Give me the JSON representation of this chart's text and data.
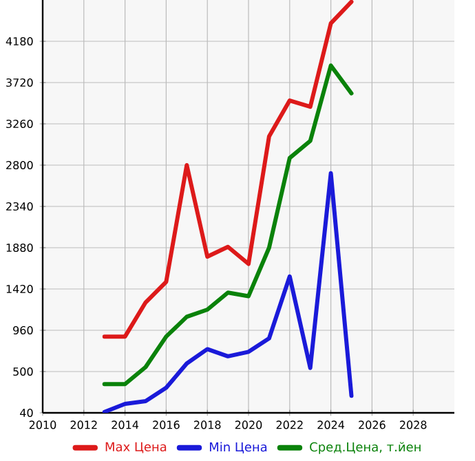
{
  "chart_data": {
    "type": "line",
    "x": [
      2013,
      2014,
      2015,
      2016,
      2017,
      2018,
      2019,
      2020,
      2021,
      2022,
      2023,
      2024,
      2025
    ],
    "series": [
      {
        "name": "Max Цена",
        "color": "#dd1a1a",
        "values": [
          890,
          890,
          1270,
          1500,
          2800,
          1780,
          1890,
          1700,
          3120,
          3520,
          3450,
          4380,
          4620
        ]
      },
      {
        "name": "Min Цена",
        "color": "#1a1ad9",
        "values": [
          50,
          140,
          170,
          320,
          590,
          750,
          670,
          720,
          870,
          1560,
          540,
          2710,
          230
        ]
      },
      {
        "name": "Сред.Цена, т.йен",
        "color": "#0a820a",
        "values": [
          360,
          360,
          550,
          890,
          1110,
          1190,
          1380,
          1340,
          1880,
          2880,
          3070,
          3910,
          3600
        ]
      }
    ],
    "xlim": [
      2010,
      2030
    ],
    "ylim": [
      40,
      4640
    ],
    "xticks": [
      2010,
      2012,
      2014,
      2016,
      2018,
      2020,
      2022,
      2024,
      2026,
      2028
    ],
    "yticks": [
      40,
      500,
      960,
      1420,
      1880,
      2340,
      2800,
      3260,
      3720,
      4180
    ],
    "grid": true,
    "legend": "bottom",
    "line_style": "solid"
  }
}
